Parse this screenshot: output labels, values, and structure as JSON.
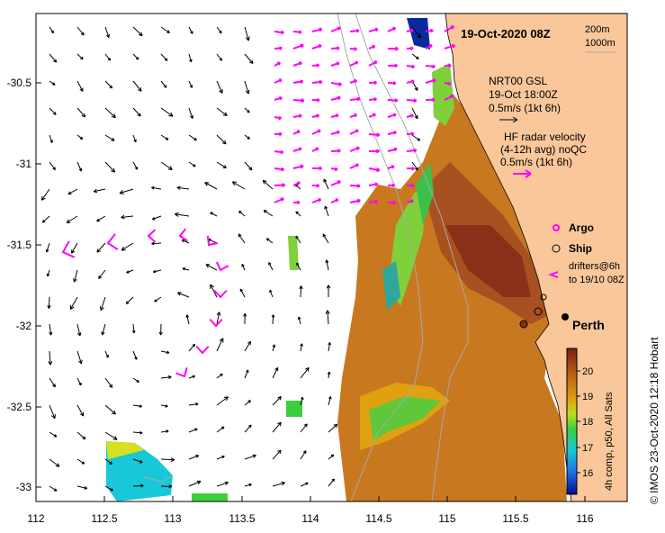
{
  "title": "19-Oct-2020 08Z",
  "depth_legend": [
    "200m",
    "1000m"
  ],
  "y_ticks": [
    "-30.5",
    "-31",
    "-31.5",
    "-32",
    "-32.5",
    "-33"
  ],
  "x_ticks": [
    "112",
    "112.5",
    "113",
    "113.5",
    "114",
    "114.5",
    "115",
    "115.5",
    "116"
  ],
  "gsl_legend": {
    "line1": "NRT00 GSL",
    "line2": "19-Oct 18:00Z",
    "line3": "0.5m/s (1kt 6h)"
  },
  "hf_legend": {
    "line1": "HF radar velocity",
    "line2": "(4-12h avg) noQC",
    "line3": "0.5m/s (1kt 6h)"
  },
  "argo_label": "Argo",
  "ship_label": "Ship",
  "drifters_line1": "drifters@6h",
  "drifters_line2": "to 19/10 08Z",
  "city_label": "Perth",
  "colorbar": {
    "ticks": [
      "20",
      "19",
      "18",
      "17",
      "16"
    ],
    "label": "4h comp, p50, All Sats"
  },
  "credit": "© IMOS 23-Oct-2020 12:18 Hobart",
  "colors": {
    "land": "#f9c79a",
    "hf_arrow": "#ff00ff",
    "gsl_arrow": "#000000"
  }
}
